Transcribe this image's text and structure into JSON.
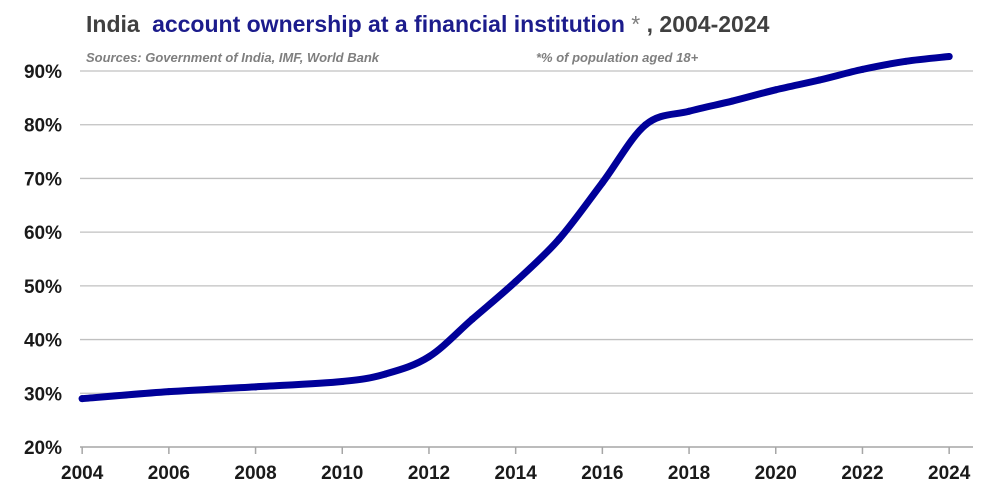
{
  "chart_data": {
    "type": "line",
    "title_parts": {
      "country": "India",
      "metric": "account ownership at a financial institution",
      "star": "*",
      "period": ", 2004-2024"
    },
    "source": "Sources: Government of India, IMF, World Bank",
    "footnote": "*% of population aged 18+",
    "xlabel": "",
    "ylabel": "",
    "xlim": [
      2004,
      2024
    ],
    "ylim": [
      20,
      90
    ],
    "x_ticks": [
      "2004",
      "2006",
      "2008",
      "2010",
      "2012",
      "2014",
      "2016",
      "2018",
      "2020",
      "2022",
      "2024"
    ],
    "y_ticks": [
      "20%",
      "30%",
      "40%",
      "50%",
      "60%",
      "70%",
      "80%",
      "90%"
    ],
    "grid": true,
    "series": [
      {
        "color": "#000099",
        "x": [
          2004,
          2006,
          2008,
          2010,
          2011,
          2012,
          2013,
          2014,
          2015,
          2016,
          2017,
          2018,
          2019,
          2020,
          2021,
          2022,
          2023,
          2024
        ],
        "y": [
          29.0,
          30.3,
          31.2,
          32.2,
          33.6,
          36.8,
          43.8,
          50.8,
          58.7,
          69.2,
          80.0,
          82.5,
          84.4,
          86.5,
          88.3,
          90.3,
          91.8,
          92.7
        ]
      }
    ]
  }
}
